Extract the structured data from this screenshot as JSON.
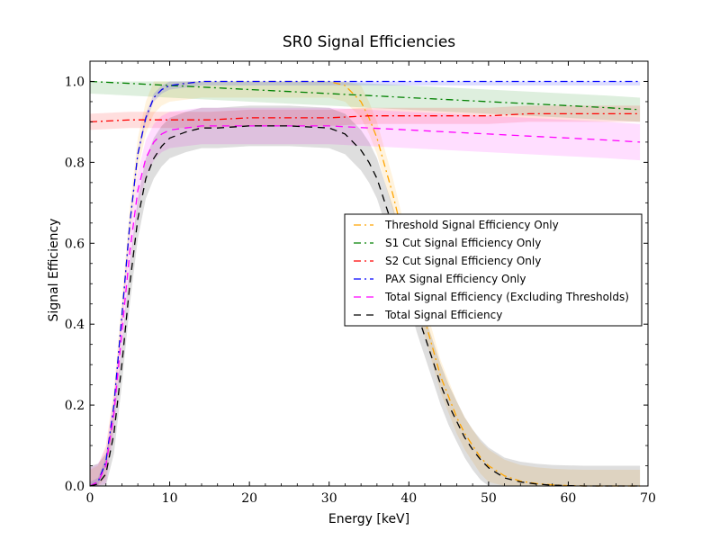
{
  "chart_data": {
    "type": "line",
    "title": "SR0 Signal Efficiencies",
    "xlabel": "Energy [keV]",
    "ylabel": "Signal Efficiency",
    "xlim": [
      0,
      70
    ],
    "ylim": [
      0,
      1.05
    ],
    "xticks": [
      "0",
      "10",
      "20",
      "30",
      "40",
      "50",
      "60",
      "70"
    ],
    "yticks": [
      "0.0",
      "0.2",
      "0.4",
      "0.6",
      "0.8",
      "1.0"
    ],
    "grid": false,
    "legend_position": "center-right",
    "series": [
      {
        "name": "Threshold Signal Efficiency Only",
        "color": "#ffa500",
        "dash": "dashdot",
        "x": [
          0,
          1,
          2,
          3,
          4,
          5,
          6,
          7,
          8,
          9,
          10,
          12,
          14,
          16,
          20,
          25,
          30,
          32,
          34,
          35,
          36,
          37,
          38,
          39,
          40,
          41,
          42,
          43,
          44,
          45,
          46,
          47,
          48,
          49,
          50,
          52,
          54,
          56,
          58,
          60,
          62,
          64,
          66,
          68,
          69
        ],
        "values": [
          0,
          0.01,
          0.06,
          0.2,
          0.42,
          0.65,
          0.82,
          0.91,
          0.96,
          0.98,
          0.99,
          0.995,
          1.0,
          1.0,
          1.0,
          1.0,
          1.0,
          0.99,
          0.95,
          0.91,
          0.86,
          0.79,
          0.72,
          0.64,
          0.56,
          0.48,
          0.41,
          0.34,
          0.27,
          0.22,
          0.17,
          0.13,
          0.1,
          0.07,
          0.05,
          0.025,
          0.012,
          0.006,
          0.003,
          0.001,
          0,
          0,
          0,
          0,
          0
        ],
        "band": 0.04
      },
      {
        "name": "S1 Cut Signal Efficiency Only",
        "color": "#008000",
        "dash": "dashdot",
        "x": [
          0,
          5,
          10,
          15,
          20,
          25,
          30,
          35,
          40,
          45,
          50,
          55,
          60,
          65,
          69
        ],
        "values": [
          1.0,
          0.995,
          0.99,
          0.985,
          0.98,
          0.975,
          0.97,
          0.965,
          0.96,
          0.955,
          0.95,
          0.945,
          0.94,
          0.935,
          0.93
        ],
        "band": 0.03
      },
      {
        "name": "S2 Cut Signal Efficiency Only",
        "color": "#ff0000",
        "dash": "dashdot",
        "x": [
          0,
          5,
          10,
          15,
          20,
          25,
          30,
          35,
          40,
          45,
          50,
          55,
          60,
          65,
          69
        ],
        "values": [
          0.9,
          0.905,
          0.905,
          0.905,
          0.91,
          0.91,
          0.91,
          0.915,
          0.915,
          0.915,
          0.915,
          0.92,
          0.92,
          0.92,
          0.92
        ],
        "band": 0.02
      },
      {
        "name": "PAX Signal Efficiency Only",
        "color": "#0000ff",
        "dash": "dashdot",
        "x": [
          0,
          1,
          2,
          3,
          4,
          5,
          6,
          7,
          8,
          9,
          10,
          12,
          14,
          16,
          20,
          30,
          40,
          50,
          60,
          69
        ],
        "values": [
          0,
          0.01,
          0.06,
          0.2,
          0.42,
          0.65,
          0.82,
          0.91,
          0.96,
          0.98,
          0.99,
          0.995,
          1.0,
          1.0,
          1.0,
          1.0,
          1.0,
          1.0,
          1.0,
          1.0
        ],
        "band": 0.01
      },
      {
        "name": "Total Signal Efficiency (Excluding Thresholds)",
        "color": "#ff00ff",
        "dash": "dash",
        "x": [
          0,
          1,
          2,
          3,
          4,
          5,
          6,
          7,
          8,
          9,
          10,
          12,
          14,
          16,
          20,
          25,
          30,
          35,
          40,
          45,
          50,
          55,
          60,
          65,
          69
        ],
        "values": [
          0,
          0.01,
          0.05,
          0.18,
          0.38,
          0.58,
          0.73,
          0.81,
          0.85,
          0.87,
          0.88,
          0.885,
          0.89,
          0.89,
          0.89,
          0.89,
          0.89,
          0.885,
          0.88,
          0.875,
          0.87,
          0.865,
          0.86,
          0.855,
          0.85
        ],
        "band": 0.045
      },
      {
        "name": "Total Signal Efficiency",
        "color": "#000000",
        "dash": "dash",
        "x": [
          0,
          1,
          2,
          3,
          4,
          5,
          6,
          7,
          8,
          9,
          10,
          12,
          14,
          16,
          20,
          25,
          30,
          32,
          34,
          35,
          36,
          37,
          38,
          39,
          40,
          41,
          42,
          43,
          44,
          45,
          46,
          47,
          48,
          49,
          50,
          52,
          54,
          56,
          58,
          60,
          62,
          64,
          66,
          68,
          69
        ],
        "values": [
          0,
          0.005,
          0.03,
          0.13,
          0.3,
          0.5,
          0.66,
          0.76,
          0.81,
          0.84,
          0.86,
          0.875,
          0.885,
          0.885,
          0.89,
          0.89,
          0.885,
          0.87,
          0.83,
          0.8,
          0.76,
          0.7,
          0.64,
          0.57,
          0.5,
          0.43,
          0.37,
          0.31,
          0.25,
          0.2,
          0.16,
          0.12,
          0.09,
          0.065,
          0.045,
          0.02,
          0.01,
          0.005,
          0.002,
          0.001,
          0,
          0,
          0,
          0,
          0
        ],
        "band": 0.05
      }
    ]
  }
}
